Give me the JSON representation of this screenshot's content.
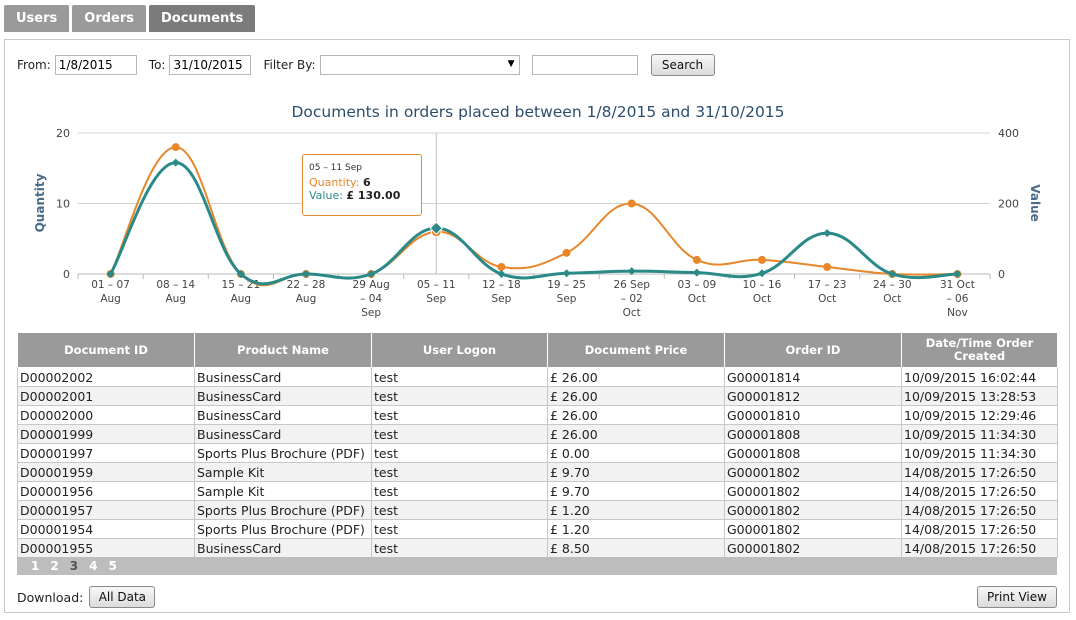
{
  "tabs": [
    {
      "label": "Users",
      "active": false
    },
    {
      "label": "Orders",
      "active": false
    },
    {
      "label": "Documents",
      "active": true
    }
  ],
  "filters": {
    "from_label": "From:",
    "from_value": "1/8/2015",
    "to_label": "To:",
    "to_value": "31/10/2015",
    "filter_label": "Filter By:",
    "filter_value": "",
    "search_value": "",
    "search_button": "Search"
  },
  "chart_data": {
    "type": "line",
    "title": "Documents in orders placed between 1/8/2015 and 31/10/2015",
    "ylabel": "Quantity",
    "y2label": "Value",
    "ylim": [
      0,
      20
    ],
    "y2lim": [
      0,
      400
    ],
    "yticks": [
      "0",
      "10",
      "20"
    ],
    "y2ticks": [
      "0",
      "200",
      "400"
    ],
    "grid": true,
    "categories": [
      [
        "01 – 07",
        "Aug"
      ],
      [
        "08 – 14",
        "Aug"
      ],
      [
        "15 – 21",
        "Aug"
      ],
      [
        "22 – 28",
        "Aug"
      ],
      [
        "29 Aug",
        "– 04",
        "Sep"
      ],
      [
        "05 – 11",
        "Sep"
      ],
      [
        "12 – 18",
        "Sep"
      ],
      [
        "19 – 25",
        "Sep"
      ],
      [
        "26 Sep",
        "– 02",
        "Oct"
      ],
      [
        "03 – 09",
        "Oct"
      ],
      [
        "10 – 16",
        "Oct"
      ],
      [
        "17 – 23",
        "Oct"
      ],
      [
        "24 – 30",
        "Oct"
      ],
      [
        "31 Oct",
        "– 06",
        "Nov"
      ]
    ],
    "series": [
      {
        "name": "Quantity",
        "axis": "left",
        "color": "#e8862a",
        "marker": "circle",
        "values": [
          0,
          18,
          0,
          0,
          0,
          6,
          1,
          3,
          10,
          2,
          2,
          1,
          0,
          0
        ]
      },
      {
        "name": "Value",
        "axis": "right",
        "color": "#2a8a88",
        "marker": "diamond",
        "values": [
          0,
          316,
          0,
          0,
          0,
          130,
          0,
          2,
          8,
          4,
          2,
          116,
          0,
          0
        ]
      }
    ],
    "highlight_index": 5,
    "tooltip": {
      "title": "05 – 11 Sep",
      "quantity_label": "Quantity:",
      "quantity_value": "6",
      "value_label": "Value:",
      "value_value": "£ 130.00"
    }
  },
  "table": {
    "headers": [
      "Document ID",
      "Product Name",
      "User Logon",
      "Document Price",
      "Order ID",
      "Date/Time Order Created"
    ],
    "rows": [
      [
        "D00002002",
        "BusinessCard",
        "test",
        "£ 26.00",
        "G00001814",
        "10/09/2015 16:02:44"
      ],
      [
        "D00002001",
        "BusinessCard",
        "test",
        "£ 26.00",
        "G00001812",
        "10/09/2015 13:28:53"
      ],
      [
        "D00002000",
        "BusinessCard",
        "test",
        "£ 26.00",
        "G00001810",
        "10/09/2015 12:29:46"
      ],
      [
        "D00001999",
        "BusinessCard",
        "test",
        "£ 26.00",
        "G00001808",
        "10/09/2015 11:34:30"
      ],
      [
        "D00001997",
        "Sports Plus Brochure (PDF)",
        "test",
        "£ 0.00",
        "G00001808",
        "10/09/2015 11:34:30"
      ],
      [
        "D00001959",
        "Sample Kit",
        "test",
        "£ 9.70",
        "G00001802",
        "14/08/2015 17:26:50"
      ],
      [
        "D00001956",
        "Sample Kit",
        "test",
        "£ 9.70",
        "G00001802",
        "14/08/2015 17:26:50"
      ],
      [
        "D00001957",
        "Sports Plus Brochure (PDF)",
        "test",
        "£ 1.20",
        "G00001802",
        "14/08/2015 17:26:50"
      ],
      [
        "D00001954",
        "Sports Plus Brochure (PDF)",
        "test",
        "£ 1.20",
        "G00001802",
        "14/08/2015 17:26:50"
      ],
      [
        "D00001955",
        "BusinessCard",
        "test",
        "£ 8.50",
        "G00001802",
        "14/08/2015 17:26:50"
      ]
    ]
  },
  "pager": {
    "pages": [
      "1",
      "2",
      "3",
      "4",
      "5"
    ],
    "current": "3"
  },
  "footer": {
    "download_label": "Download:",
    "all_data_button": "All Data",
    "print_button": "Print View"
  }
}
